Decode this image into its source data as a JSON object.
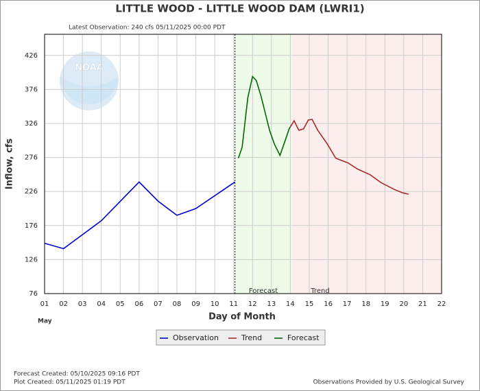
{
  "chart_data": {
    "type": "line",
    "title": "LITTLE WOOD - LITTLE WOOD DAM  (LWRI1)",
    "subtitle": "Latest Observation: 240 cfs 05/11/2025 00:00 PDT",
    "y_label": "Inflow, cfs",
    "x_label": "Day of Month",
    "x_sublabel": "May",
    "logo": "NOAA",
    "xlim": [
      1,
      22
    ],
    "ylim": [
      76,
      457
    ],
    "xticks": [
      {
        "value": 1,
        "label": "01"
      },
      {
        "value": 2,
        "label": "02"
      },
      {
        "value": 3,
        "label": "03"
      },
      {
        "value": 4,
        "label": "04"
      },
      {
        "value": 5,
        "label": "05"
      },
      {
        "value": 6,
        "label": "06"
      },
      {
        "value": 7,
        "label": "07"
      },
      {
        "value": 8,
        "label": "08"
      },
      {
        "value": 9,
        "label": "09"
      },
      10,
      11,
      12,
      13,
      14,
      15,
      16,
      17,
      18,
      19,
      20,
      21,
      22
    ],
    "yticks": [
      76,
      126,
      176,
      226,
      276,
      326,
      376,
      426
    ],
    "grid": true,
    "regions": [
      {
        "label": "Forecast",
        "start": 11.07,
        "end": 14.08,
        "color": "#eefbe9"
      },
      {
        "label": "Trend",
        "start": 14.08,
        "end": 22,
        "color": "#fdeeee"
      }
    ],
    "series": [
      {
        "name": "Observation",
        "color": "#0000cc",
        "x": [
          1,
          2,
          4,
          6,
          7,
          8,
          9,
          11.07
        ],
        "values": [
          150,
          142,
          183,
          240,
          212,
          191,
          201,
          240
        ]
      },
      {
        "name": "Trend",
        "color": "#a52a2a",
        "x": [
          14.0,
          14.2,
          14.45,
          14.7,
          14.95,
          15.15,
          15.45,
          15.95,
          16.4,
          17.05,
          17.55,
          18.2,
          18.8,
          19.5,
          19.95,
          20.25
        ],
        "values": [
          321,
          330,
          316,
          318,
          331,
          332,
          316,
          296,
          275,
          268,
          259,
          251,
          239,
          229,
          224,
          222
        ]
      },
      {
        "name": "Forecast",
        "color": "#006600",
        "x": [
          11.25,
          11.45,
          11.75,
          12.0,
          12.2,
          12.45,
          12.9,
          13.15,
          13.45,
          13.7,
          13.95,
          14.0
        ],
        "values": [
          275,
          291,
          364,
          395,
          389,
          366,
          316,
          296,
          279,
          299,
          319,
          321
        ]
      }
    ],
    "footer_left": [
      "Forecast Created: 05/10/2025 09:16 PDT",
      "Plot Created: 05/11/2025 01:19 PDT"
    ],
    "footer_right": "Observations Provided by U.S. Geological Survey"
  }
}
